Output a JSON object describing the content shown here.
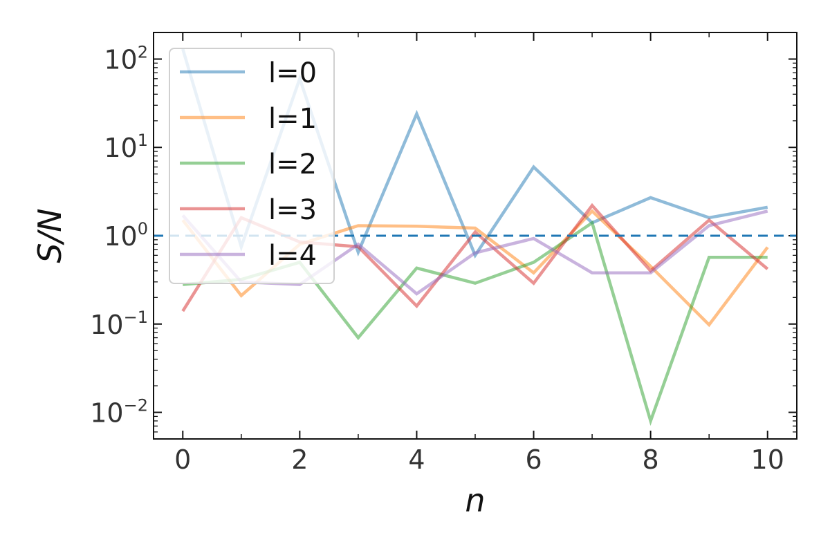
{
  "chart_data": {
    "type": "line",
    "title": "",
    "xlabel": "n",
    "ylabel": "S/N",
    "x": [
      0,
      1,
      2,
      3,
      4,
      5,
      6,
      7,
      8,
      9,
      10
    ],
    "xlim": [
      -0.5,
      10.5
    ],
    "ylim": [
      0.005,
      200
    ],
    "yscale": "log",
    "x_ticks": [
      0,
      2,
      4,
      6,
      8,
      10
    ],
    "x_tick_labels": [
      "0",
      "2",
      "4",
      "6",
      "8",
      "10"
    ],
    "y_ticks": [
      0.01,
      0.1,
      1,
      10,
      100
    ],
    "y_tick_labels": [
      {
        "base": "10",
        "exp": "−2"
      },
      {
        "base": "10",
        "exp": "−1"
      },
      {
        "base": "10",
        "exp": "0"
      },
      {
        "base": "10",
        "exp": "1"
      },
      {
        "base": "10",
        "exp": "2"
      }
    ],
    "grid": false,
    "legend_position": "top-left",
    "reference_line": {
      "y": 1,
      "style": "dashed",
      "color": "#1f77b4"
    },
    "series": [
      {
        "name": "l=0",
        "color": "#1f77b4",
        "values": [
          130,
          0.75,
          60,
          0.65,
          24,
          0.6,
          6,
          1.4,
          2.7,
          1.6,
          2.1
        ]
      },
      {
        "name": "l=1",
        "color": "#ff7f0e",
        "values": [
          1.5,
          0.21,
          0.8,
          1.3,
          1.28,
          1.22,
          0.38,
          1.9,
          0.45,
          0.098,
          0.74
        ]
      },
      {
        "name": "l=2",
        "color": "#2ca02c",
        "values": [
          0.28,
          0.32,
          0.5,
          0.07,
          0.43,
          0.29,
          0.5,
          1.4,
          0.008,
          0.57,
          0.57
        ]
      },
      {
        "name": "l=3",
        "color": "#d62728",
        "values": [
          0.14,
          1.6,
          0.85,
          0.75,
          0.16,
          1.1,
          0.29,
          2.2,
          0.4,
          1.5,
          0.42
        ]
      },
      {
        "name": "l=4",
        "color": "#9467bd",
        "values": [
          1.7,
          0.3,
          0.28,
          0.8,
          0.22,
          0.64,
          0.93,
          0.38,
          0.38,
          1.3,
          1.9
        ]
      }
    ]
  }
}
